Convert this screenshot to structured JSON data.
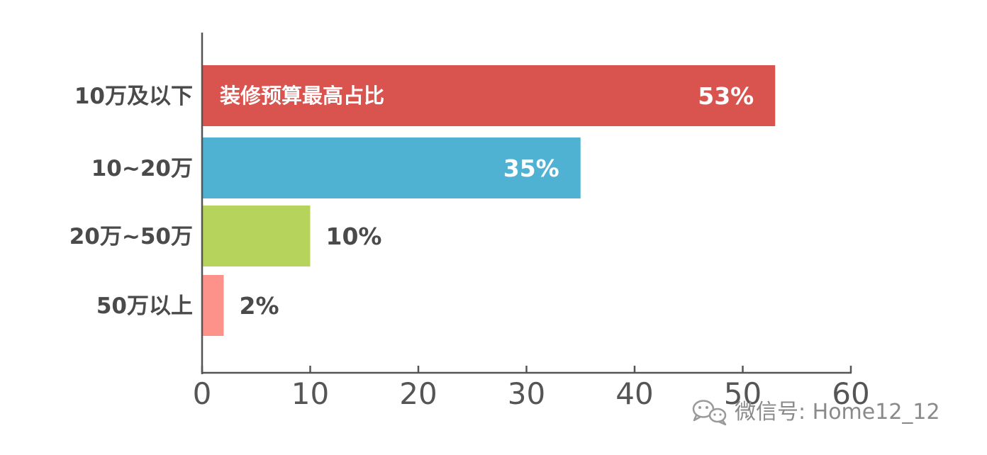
{
  "chart_data": {
    "type": "bar",
    "orientation": "horizontal",
    "categories": [
      "10万及以下",
      "10~20万",
      "20万~50万",
      "50万以上"
    ],
    "values": [
      53,
      35,
      10,
      2
    ],
    "value_labels": [
      "53%",
      "35%",
      "10%",
      "2%"
    ],
    "colors": [
      "#d9534f",
      "#50b2d3",
      "#b6d35c",
      "#fc928a"
    ],
    "annotation": {
      "text": "装修预算最高占比",
      "category": "10万及以下"
    },
    "xlim": [
      0,
      60
    ],
    "xticks": [
      0,
      10,
      20,
      30,
      40,
      50,
      60
    ],
    "xlabel": "",
    "ylabel": "",
    "grid": false,
    "legend": "none"
  },
  "watermark": {
    "text": "微信号: Home12_12",
    "icon": "wechat-icon"
  }
}
